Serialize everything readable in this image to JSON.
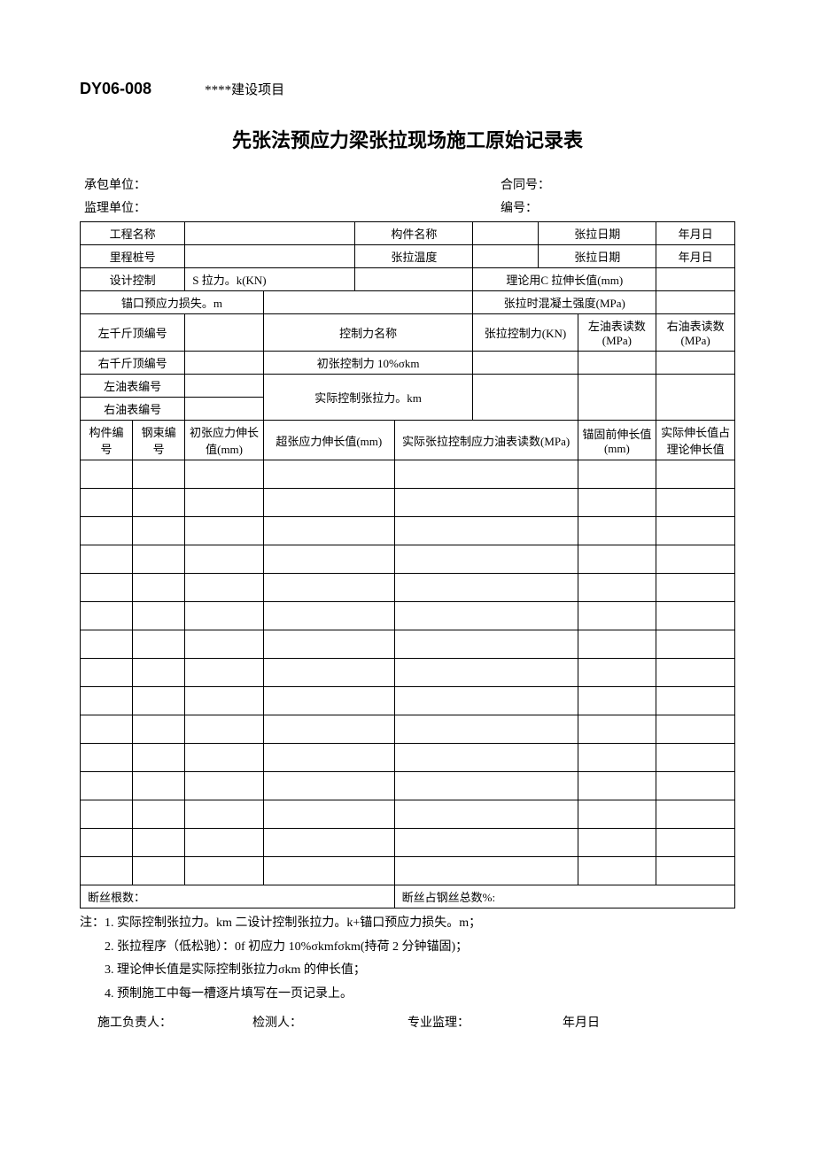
{
  "header": {
    "doc_code": "DY06-008",
    "project_name": "****建设项目"
  },
  "title": "先张法预应力梁张拉现场施工原始记录表",
  "info": {
    "contractor_label": "承包单位：",
    "contract_no_label": "合同号：",
    "supervisor_label": "监理单位：",
    "serial_no_label": "编号："
  },
  "row1": {
    "c1": "工程名称",
    "c2": "",
    "c3": "构件名称",
    "c4": "",
    "c5": "张拉日期",
    "c6": "年月日"
  },
  "row2": {
    "c1": "里程桩号",
    "c2": "",
    "c3": "张拉温度",
    "c4": "",
    "c5": "张拉日期",
    "c6": "年月日"
  },
  "row3": {
    "c1": "设计控制",
    "c2": "S 拉力。k(KN)",
    "c3": "",
    "c4": "理论用C 拉伸长值(mm)",
    "c5": ""
  },
  "row4": {
    "c1": "锚口预应力损失。m",
    "c2": "",
    "c3": "张拉时混凝土强度(MPa)",
    "c4": ""
  },
  "row5": {
    "c1": "左千斤顶编号",
    "c2": "",
    "c3": "控制力名称",
    "c4": "张拉控制力(KN)",
    "c5": "左油表读数(MPa)",
    "c6": "右油表读数(MPa)"
  },
  "row6": {
    "c1": "右千斤顶编号",
    "c2": "",
    "c3": "初张控制力 10%σkm",
    "c4": "",
    "c5": "",
    "c6": ""
  },
  "row7": {
    "c1": "左油表编号",
    "c2": "",
    "c3": "实际控制张拉力。km",
    "c4": "",
    "c5": "",
    "c6": ""
  },
  "row8": {
    "c1": "右油表编号",
    "c2": ""
  },
  "data_header": {
    "c1": "构件编号",
    "c2": "钢束编号",
    "c3": "初张应力伸长值(mm)",
    "c4": "超张应力伸长值(mm)",
    "c5": "实际张拉控制应力油表读数(MPa)",
    "c6": "锚固前伸长值(mm)",
    "c7": "实际伸长值占理论伸长值"
  },
  "data_row_count": 15,
  "broken_wire": {
    "left": "断丝根数：",
    "right": "断丝占钢丝总数%:"
  },
  "notes": {
    "prefix": "注：",
    "n1": "1. 实际控制张拉力。km 二设计控制张拉力。k+锚口预应力损失。m；",
    "n2": "2. 张拉程序（低松驰）：0f 初应力 10%σkmfσkm(持荷 2 分钟锚固)；",
    "n3": "3. 理论伸长值是实际控制张拉力σkm 的伸长值；",
    "n4": "4. 预制施工中每一槽逐片填写在一页记录上。"
  },
  "footer": {
    "c1": "施工负责人：",
    "c2": "检测人：",
    "c3": "专业监理：",
    "c4": "年月日"
  },
  "style": {
    "font_family": "SimSun",
    "text_color": "#000000",
    "background_color": "#ffffff",
    "border_color": "#000000",
    "title_fontsize": 22,
    "body_fontsize": 14,
    "table_fontsize": 13,
    "doc_code_fontsize": 18
  }
}
